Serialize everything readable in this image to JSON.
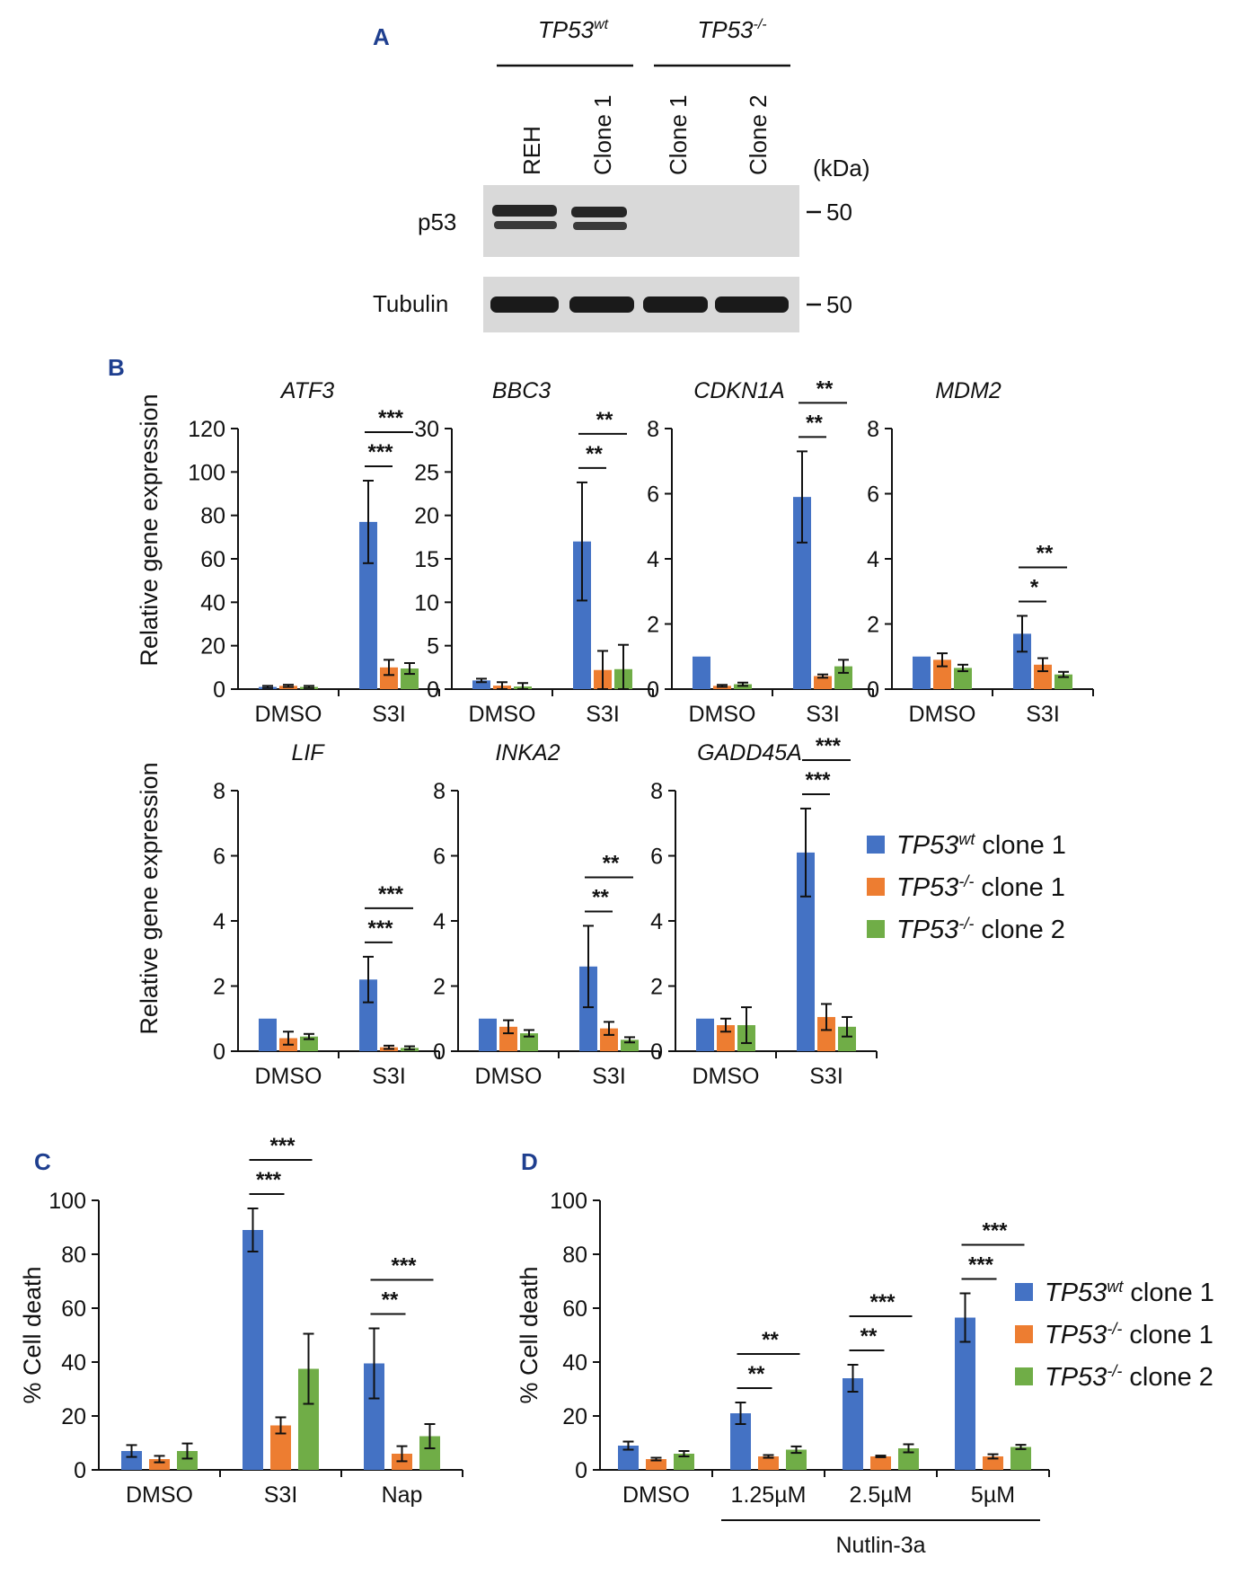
{
  "figure": {
    "panel_labels": [
      "A",
      "B",
      "C",
      "D"
    ]
  },
  "western_blot": {
    "group_labels": [
      {
        "gene": "TP53",
        "sup": "wt"
      },
      {
        "gene": "TP53",
        "sup": "-/-"
      }
    ],
    "lanes": [
      "REH",
      "Clone 1",
      "Clone 1",
      "Clone 2"
    ],
    "unit_label": "(kDa)",
    "rows": [
      {
        "label": "p53",
        "marker": "50",
        "present": [
          true,
          true,
          false,
          false
        ]
      },
      {
        "label": "Tubulin",
        "marker": "50",
        "present": [
          true,
          true,
          true,
          true
        ]
      }
    ]
  },
  "legend": [
    {
      "gene": "TP53",
      "sup": "wt",
      "suffix": " clone 1",
      "color": "#4472c4"
    },
    {
      "gene": "TP53",
      "sup": "-/-",
      "suffix": " clone 1",
      "color": "#ed7d31"
    },
    {
      "gene": "TP53",
      "sup": "-/-",
      "suffix": " clone 2",
      "color": "#70ad47"
    }
  ],
  "chart_data": [
    {
      "type": "bar",
      "panel": "B",
      "title": "ATF3",
      "ylabel": "Relative gene expression",
      "ylim": [
        0,
        120
      ],
      "yticks": [
        0,
        20,
        40,
        60,
        80,
        100,
        120
      ],
      "categories": [
        "DMSO",
        "S3I"
      ],
      "series": [
        {
          "values": [
            1,
            77
          ],
          "err": [
            0.5,
            19
          ]
        },
        {
          "values": [
            1.5,
            10
          ],
          "err": [
            0.5,
            3.5
          ]
        },
        {
          "values": [
            1,
            9.5
          ],
          "err": [
            0.5,
            2.5
          ]
        }
      ],
      "sig": [
        {
          "cat": 1,
          "to": 1,
          "label": "***"
        },
        {
          "cat": 1,
          "to": 2,
          "label": "***"
        }
      ]
    },
    {
      "type": "bar",
      "panel": "B",
      "title": "BBC3",
      "ylabel": "",
      "ylim": [
        0,
        30
      ],
      "yticks": [
        0,
        5,
        10,
        15,
        20,
        25,
        30
      ],
      "categories": [
        "DMSO",
        "S3I"
      ],
      "series": [
        {
          "values": [
            1,
            17
          ],
          "err": [
            0.2,
            6.8
          ]
        },
        {
          "values": [
            0.4,
            2.2
          ],
          "err": [
            0.4,
            2.2
          ]
        },
        {
          "values": [
            0.3,
            2.3
          ],
          "err": [
            0.4,
            2.8
          ]
        }
      ],
      "sig": [
        {
          "cat": 1,
          "to": 1,
          "label": "**"
        },
        {
          "cat": 1,
          "to": 2,
          "label": "**"
        }
      ]
    },
    {
      "type": "bar",
      "panel": "B",
      "title": "CDKN1A",
      "ylabel": "",
      "ylim": [
        0,
        8
      ],
      "yticks": [
        0,
        2,
        4,
        6,
        8
      ],
      "categories": [
        "DMSO",
        "S3I"
      ],
      "series": [
        {
          "values": [
            1,
            5.9
          ],
          "err": [
            0,
            1.4
          ]
        },
        {
          "values": [
            0.1,
            0.4
          ],
          "err": [
            0.03,
            0.05
          ]
        },
        {
          "values": [
            0.15,
            0.7
          ],
          "err": [
            0.05,
            0.2
          ]
        }
      ],
      "sig": [
        {
          "cat": 1,
          "to": 1,
          "label": "**"
        },
        {
          "cat": 1,
          "to": 2,
          "label": "**"
        }
      ]
    },
    {
      "type": "bar",
      "panel": "B",
      "title": "MDM2",
      "ylabel": "",
      "ylim": [
        0,
        8
      ],
      "yticks": [
        0,
        2,
        4,
        6,
        8
      ],
      "categories": [
        "DMSO",
        "S3I"
      ],
      "series": [
        {
          "values": [
            1,
            1.7
          ],
          "err": [
            0,
            0.55
          ]
        },
        {
          "values": [
            0.9,
            0.75
          ],
          "err": [
            0.2,
            0.2
          ]
        },
        {
          "values": [
            0.65,
            0.45
          ],
          "err": [
            0.1,
            0.08
          ]
        }
      ],
      "sig": [
        {
          "cat": 1,
          "to": 1,
          "label": "*"
        },
        {
          "cat": 1,
          "to": 2,
          "label": "**"
        }
      ]
    },
    {
      "type": "bar",
      "panel": "B",
      "title": "LIF",
      "ylabel": "Relative gene expression",
      "ylim": [
        0,
        8
      ],
      "yticks": [
        0,
        2,
        4,
        6,
        8
      ],
      "categories": [
        "DMSO",
        "S3I"
      ],
      "series": [
        {
          "values": [
            1,
            2.2
          ],
          "err": [
            0,
            0.7
          ]
        },
        {
          "values": [
            0.4,
            0.12
          ],
          "err": [
            0.2,
            0.05
          ]
        },
        {
          "values": [
            0.45,
            0.1
          ],
          "err": [
            0.08,
            0.05
          ]
        }
      ],
      "sig": [
        {
          "cat": 1,
          "to": 1,
          "label": "***"
        },
        {
          "cat": 1,
          "to": 2,
          "label": "***"
        }
      ]
    },
    {
      "type": "bar",
      "panel": "B",
      "title": "INKA2",
      "ylabel": "",
      "ylim": [
        0,
        8
      ],
      "yticks": [
        0,
        2,
        4,
        6,
        8
      ],
      "categories": [
        "DMSO",
        "S3I"
      ],
      "series": [
        {
          "values": [
            1,
            2.6
          ],
          "err": [
            0,
            1.25
          ]
        },
        {
          "values": [
            0.75,
            0.7
          ],
          "err": [
            0.2,
            0.2
          ]
        },
        {
          "values": [
            0.55,
            0.35
          ],
          "err": [
            0.1,
            0.08
          ]
        }
      ],
      "sig": [
        {
          "cat": 1,
          "to": 1,
          "label": "**"
        },
        {
          "cat": 1,
          "to": 2,
          "label": "**"
        }
      ]
    },
    {
      "type": "bar",
      "panel": "B",
      "title": "GADD45A",
      "ylabel": "",
      "ylim": [
        0,
        8
      ],
      "yticks": [
        0,
        2,
        4,
        6,
        8
      ],
      "categories": [
        "DMSO",
        "S3I"
      ],
      "series": [
        {
          "values": [
            1,
            6.1
          ],
          "err": [
            0,
            1.35
          ]
        },
        {
          "values": [
            0.8,
            1.05
          ],
          "err": [
            0.2,
            0.4
          ]
        },
        {
          "values": [
            0.8,
            0.75
          ],
          "err": [
            0.55,
            0.3
          ]
        }
      ],
      "sig": [
        {
          "cat": 1,
          "to": 1,
          "label": "***"
        },
        {
          "cat": 1,
          "to": 2,
          "label": "***"
        }
      ]
    },
    {
      "type": "bar",
      "panel": "C",
      "title": "",
      "ylabel": "% Cell death",
      "ylim": [
        0,
        100
      ],
      "yticks": [
        0,
        20,
        40,
        60,
        80,
        100
      ],
      "categories": [
        "DMSO",
        "S3I",
        "Nap"
      ],
      "series": [
        {
          "values": [
            7,
            89,
            39.5
          ],
          "err": [
            2.2,
            8,
            13
          ]
        },
        {
          "values": [
            4,
            16.5,
            6
          ],
          "err": [
            1.2,
            3,
            2.8
          ]
        },
        {
          "values": [
            7,
            37.5,
            12.5
          ],
          "err": [
            2.8,
            13,
            4.5
          ]
        }
      ],
      "sig": [
        {
          "cat": 1,
          "to": 1,
          "label": "***"
        },
        {
          "cat": 1,
          "to": 2,
          "label": "***"
        },
        {
          "cat": 2,
          "to": 1,
          "label": "**"
        },
        {
          "cat": 2,
          "to": 2,
          "label": "***"
        }
      ]
    },
    {
      "type": "bar",
      "panel": "D",
      "title": "",
      "ylabel": "% Cell death",
      "ylim": [
        0,
        100
      ],
      "yticks": [
        0,
        20,
        40,
        60,
        80,
        100
      ],
      "categories": [
        "DMSO",
        "1.25µM",
        "2.5µM",
        "5µM"
      ],
      "group_label": "Nutlin-3a",
      "series": [
        {
          "values": [
            9,
            21,
            34,
            56.5
          ],
          "err": [
            1.5,
            4,
            5,
            9
          ]
        },
        {
          "values": [
            4,
            5,
            5,
            5
          ],
          "err": [
            0.5,
            0.5,
            0.3,
            0.8
          ]
        },
        {
          "values": [
            6,
            7.5,
            8,
            8.5
          ],
          "err": [
            1,
            1.2,
            1.5,
            0.8
          ]
        }
      ],
      "sig": [
        {
          "cat": 1,
          "to": 1,
          "label": "**"
        },
        {
          "cat": 1,
          "to": 2,
          "label": "**"
        },
        {
          "cat": 2,
          "to": 1,
          "label": "**"
        },
        {
          "cat": 2,
          "to": 2,
          "label": "***"
        },
        {
          "cat": 3,
          "to": 1,
          "label": "***"
        },
        {
          "cat": 3,
          "to": 2,
          "label": "***"
        }
      ]
    }
  ]
}
